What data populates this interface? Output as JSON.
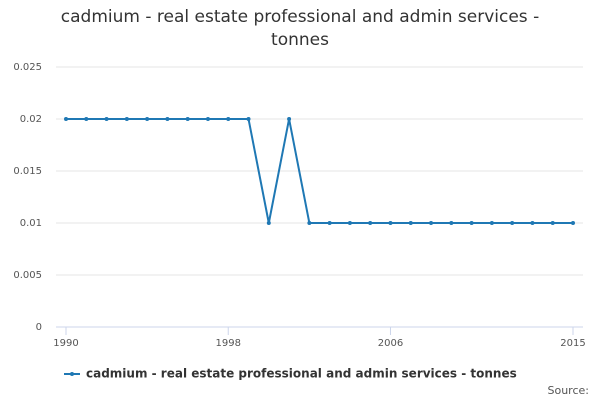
{
  "chart_data": {
    "type": "line",
    "title": "cadmium - real estate professional and admin services - tonnes",
    "x": [
      1990,
      1991,
      1992,
      1993,
      1994,
      1995,
      1996,
      1997,
      1998,
      1999,
      2000,
      2001,
      2002,
      2003,
      2004,
      2005,
      2006,
      2007,
      2008,
      2009,
      2010,
      2011,
      2012,
      2013,
      2014,
      2015
    ],
    "series": [
      {
        "name": "cadmium - real estate professional and admin services - tonnes",
        "color": "#1f78b4",
        "values": [
          0.02,
          0.02,
          0.02,
          0.02,
          0.02,
          0.02,
          0.02,
          0.02,
          0.02,
          0.02,
          0.01,
          0.02,
          0.01,
          0.01,
          0.01,
          0.01,
          0.01,
          0.01,
          0.01,
          0.01,
          0.01,
          0.01,
          0.01,
          0.01,
          0.01,
          0.01
        ]
      }
    ],
    "xlim": [
      1990,
      2015
    ],
    "xticks": [
      1990,
      1998,
      2006,
      2015
    ],
    "ylim": [
      0,
      0.025
    ],
    "yticks": [
      0,
      0.005,
      0.01,
      0.015,
      0.02,
      0.025
    ],
    "grid": true,
    "legend": "bottom",
    "source": "Source:"
  }
}
